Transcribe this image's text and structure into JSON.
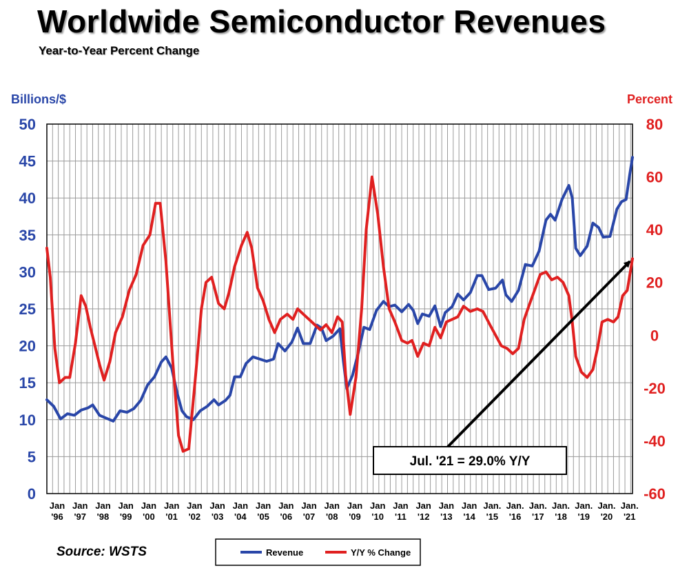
{
  "title": "Worldwide Semiconductor Revenues",
  "subtitle": "Year-to-Year Percent Change",
  "source": "Source: WSTS",
  "colors": {
    "revenue": "#2946a8",
    "yoy": "#e02020",
    "left_axis": "#2946a8",
    "right_axis": "#e02020"
  },
  "chart_data": {
    "type": "line",
    "y_left": {
      "label": "Billions/$",
      "range": [
        0,
        50
      ],
      "ticks": [
        "0",
        "5",
        "10",
        "15",
        "20",
        "25",
        "30",
        "35",
        "40",
        "45",
        "50"
      ]
    },
    "y_right": {
      "label": "Percent",
      "range": [
        -60,
        80
      ],
      "ticks": [
        "-60",
        "-40",
        "-20",
        "0",
        "20",
        "40",
        "60",
        "80"
      ]
    },
    "x_range": [
      1996.0,
      2021.58
    ],
    "x_ticks": [
      {
        "x": 1996,
        "l1": "Jan",
        "l2": "'96"
      },
      {
        "x": 1997,
        "l1": "Jan",
        "l2": "'97"
      },
      {
        "x": 1998,
        "l1": "Jan",
        "l2": "'98"
      },
      {
        "x": 1999,
        "l1": "Jan",
        "l2": "'99"
      },
      {
        "x": 2000,
        "l1": "Jan",
        "l2": "'00"
      },
      {
        "x": 2001,
        "l1": "Jan",
        "l2": "'01"
      },
      {
        "x": 2002,
        "l1": "Jan",
        "l2": "'02"
      },
      {
        "x": 2003,
        "l1": "Jan",
        "l2": "'03"
      },
      {
        "x": 2004,
        "l1": "Jan",
        "l2": "'04"
      },
      {
        "x": 2005,
        "l1": "Jan",
        "l2": "'05"
      },
      {
        "x": 2006,
        "l1": "Jan",
        "l2": "'06"
      },
      {
        "x": 2007,
        "l1": "Jan",
        "l2": "'07"
      },
      {
        "x": 2008,
        "l1": "Jan",
        "l2": "'08"
      },
      {
        "x": 2009,
        "l1": "Jan",
        "l2": "'09"
      },
      {
        "x": 2010,
        "l1": "Jan",
        "l2": "'10"
      },
      {
        "x": 2011,
        "l1": "Jan",
        "l2": "'11"
      },
      {
        "x": 2012,
        "l1": "Jan",
        "l2": "'12"
      },
      {
        "x": 2013,
        "l1": "Jan",
        "l2": "'13"
      },
      {
        "x": 2014,
        "l1": "Jan",
        "l2": "'14"
      },
      {
        "x": 2015,
        "l1": "Jan.",
        "l2": "'15"
      },
      {
        "x": 2016,
        "l1": "Jan.",
        "l2": "'16"
      },
      {
        "x": 2017,
        "l1": "Jan.",
        "l2": "'17"
      },
      {
        "x": 2018,
        "l1": "Jan.",
        "l2": "'18"
      },
      {
        "x": 2019,
        "l1": "Jan.",
        "l2": "'19"
      },
      {
        "x": 2020,
        "l1": "Jan.",
        "l2": "'20"
      },
      {
        "x": 2021,
        "l1": "Jan.",
        "l2": "'21"
      }
    ],
    "series": [
      {
        "name": "Revenue",
        "axis": "left",
        "points": [
          [
            1996.0,
            12.7
          ],
          [
            1996.3,
            11.8
          ],
          [
            1996.6,
            10.1
          ],
          [
            1996.9,
            10.8
          ],
          [
            1997.2,
            10.6
          ],
          [
            1997.5,
            11.3
          ],
          [
            1997.8,
            11.6
          ],
          [
            1998.0,
            12.0
          ],
          [
            1998.3,
            10.6
          ],
          [
            1998.6,
            10.2
          ],
          [
            1998.9,
            9.8
          ],
          [
            1999.2,
            11.2
          ],
          [
            1999.5,
            11.0
          ],
          [
            1999.8,
            11.5
          ],
          [
            2000.1,
            12.6
          ],
          [
            2000.4,
            14.7
          ],
          [
            2000.7,
            15.8
          ],
          [
            2001.0,
            17.8
          ],
          [
            2001.2,
            18.5
          ],
          [
            2001.45,
            17.0
          ],
          [
            2001.7,
            13.5
          ],
          [
            2001.9,
            11.2
          ],
          [
            2002.1,
            10.4
          ],
          [
            2002.4,
            10.0
          ],
          [
            2002.7,
            11.2
          ],
          [
            2003.0,
            11.8
          ],
          [
            2003.3,
            12.7
          ],
          [
            2003.5,
            12.0
          ],
          [
            2003.8,
            12.6
          ],
          [
            2004.0,
            13.3
          ],
          [
            2004.2,
            15.8
          ],
          [
            2004.45,
            15.8
          ],
          [
            2004.7,
            17.6
          ],
          [
            2005.0,
            18.5
          ],
          [
            2005.3,
            18.2
          ],
          [
            2005.6,
            17.9
          ],
          [
            2005.9,
            18.2
          ],
          [
            2006.1,
            20.3
          ],
          [
            2006.4,
            19.3
          ],
          [
            2006.7,
            20.5
          ],
          [
            2006.95,
            22.4
          ],
          [
            2007.2,
            20.3
          ],
          [
            2007.5,
            20.3
          ],
          [
            2007.8,
            22.8
          ],
          [
            2008.0,
            22.4
          ],
          [
            2008.2,
            20.7
          ],
          [
            2008.5,
            21.3
          ],
          [
            2008.8,
            22.3
          ],
          [
            2008.95,
            18.0
          ],
          [
            2009.1,
            14.2
          ],
          [
            2009.35,
            16.0
          ],
          [
            2009.6,
            19.0
          ],
          [
            2009.85,
            22.5
          ],
          [
            2010.1,
            22.2
          ],
          [
            2010.4,
            24.8
          ],
          [
            2010.7,
            26.0
          ],
          [
            2010.95,
            25.3
          ],
          [
            2011.2,
            25.5
          ],
          [
            2011.5,
            24.6
          ],
          [
            2011.8,
            25.6
          ],
          [
            2012.0,
            24.8
          ],
          [
            2012.2,
            23.0
          ],
          [
            2012.4,
            24.3
          ],
          [
            2012.7,
            24.0
          ],
          [
            2012.95,
            25.4
          ],
          [
            2013.2,
            22.6
          ],
          [
            2013.4,
            24.5
          ],
          [
            2013.7,
            25.3
          ],
          [
            2013.95,
            27.0
          ],
          [
            2014.2,
            26.2
          ],
          [
            2014.5,
            27.2
          ],
          [
            2014.8,
            29.5
          ],
          [
            2015.0,
            29.5
          ],
          [
            2015.3,
            27.6
          ],
          [
            2015.6,
            27.8
          ],
          [
            2015.9,
            28.9
          ],
          [
            2016.05,
            26.9
          ],
          [
            2016.3,
            26.0
          ],
          [
            2016.6,
            27.5
          ],
          [
            2016.9,
            31.0
          ],
          [
            2017.2,
            30.8
          ],
          [
            2017.5,
            32.8
          ],
          [
            2017.8,
            37.0
          ],
          [
            2018.0,
            37.8
          ],
          [
            2018.2,
            37.0
          ],
          [
            2018.5,
            39.8
          ],
          [
            2018.8,
            41.7
          ],
          [
            2018.95,
            40.0
          ],
          [
            2019.1,
            33.2
          ],
          [
            2019.3,
            32.2
          ],
          [
            2019.6,
            33.5
          ],
          [
            2019.85,
            36.6
          ],
          [
            2020.1,
            36.0
          ],
          [
            2020.3,
            34.7
          ],
          [
            2020.6,
            34.8
          ],
          [
            2020.9,
            38.5
          ],
          [
            2021.1,
            39.5
          ],
          [
            2021.3,
            39.8
          ],
          [
            2021.45,
            43.0
          ],
          [
            2021.58,
            45.5
          ]
        ]
      },
      {
        "name": "Y/Y % Change",
        "axis": "right",
        "points": [
          [
            1996.0,
            33.0
          ],
          [
            1996.15,
            22.0
          ],
          [
            1996.35,
            -5.0
          ],
          [
            1996.55,
            -18.0
          ],
          [
            1996.8,
            -16.0
          ],
          [
            1997.0,
            -16.0
          ],
          [
            1997.25,
            -3.0
          ],
          [
            1997.5,
            15.0
          ],
          [
            1997.7,
            11.0
          ],
          [
            1997.9,
            3.0
          ],
          [
            1998.1,
            -4.0
          ],
          [
            1998.3,
            -11.0
          ],
          [
            1998.5,
            -17.0
          ],
          [
            1998.75,
            -10.0
          ],
          [
            1999.0,
            1.0
          ],
          [
            1999.3,
            7.0
          ],
          [
            1999.6,
            17.0
          ],
          [
            1999.9,
            23.0
          ],
          [
            2000.2,
            34.0
          ],
          [
            2000.5,
            38.0
          ],
          [
            2000.75,
            50.0
          ],
          [
            2000.95,
            50.0
          ],
          [
            2001.2,
            28.0
          ],
          [
            2001.5,
            -10.0
          ],
          [
            2001.75,
            -38.0
          ],
          [
            2001.95,
            -44.0
          ],
          [
            2002.2,
            -43.0
          ],
          [
            2002.5,
            -15.0
          ],
          [
            2002.75,
            10.0
          ],
          [
            2002.95,
            20.0
          ],
          [
            2003.2,
            22.0
          ],
          [
            2003.5,
            12.0
          ],
          [
            2003.75,
            10.0
          ],
          [
            2003.95,
            16.0
          ],
          [
            2004.2,
            26.0
          ],
          [
            2004.5,
            34.0
          ],
          [
            2004.75,
            39.0
          ],
          [
            2004.95,
            33.0
          ],
          [
            2005.2,
            18.0
          ],
          [
            2005.45,
            13.0
          ],
          [
            2005.7,
            6.0
          ],
          [
            2005.95,
            1.0
          ],
          [
            2006.2,
            6.0
          ],
          [
            2006.5,
            8.0
          ],
          [
            2006.75,
            6.0
          ],
          [
            2006.95,
            10.0
          ],
          [
            2007.2,
            8.0
          ],
          [
            2007.45,
            6.0
          ],
          [
            2007.7,
            4.0
          ],
          [
            2007.95,
            2.0
          ],
          [
            2008.2,
            4.0
          ],
          [
            2008.45,
            1.0
          ],
          [
            2008.7,
            7.0
          ],
          [
            2008.9,
            5.0
          ],
          [
            2009.05,
            -15.0
          ],
          [
            2009.25,
            -30.0
          ],
          [
            2009.5,
            -16.0
          ],
          [
            2009.75,
            10.0
          ],
          [
            2009.95,
            40.0
          ],
          [
            2010.2,
            60.0
          ],
          [
            2010.45,
            46.0
          ],
          [
            2010.7,
            26.0
          ],
          [
            2010.95,
            10.0
          ],
          [
            2011.2,
            5.0
          ],
          [
            2011.5,
            -2.0
          ],
          [
            2011.75,
            -3.0
          ],
          [
            2011.95,
            -2.0
          ],
          [
            2012.2,
            -8.0
          ],
          [
            2012.45,
            -3.0
          ],
          [
            2012.7,
            -4.0
          ],
          [
            2012.95,
            3.0
          ],
          [
            2013.2,
            -1.0
          ],
          [
            2013.45,
            5.0
          ],
          [
            2013.7,
            6.0
          ],
          [
            2013.95,
            7.0
          ],
          [
            2014.2,
            11.0
          ],
          [
            2014.5,
            9.0
          ],
          [
            2014.8,
            10.0
          ],
          [
            2015.05,
            9.0
          ],
          [
            2015.35,
            4.0
          ],
          [
            2015.6,
            0.0
          ],
          [
            2015.85,
            -4.0
          ],
          [
            2016.1,
            -5.0
          ],
          [
            2016.35,
            -7.0
          ],
          [
            2016.6,
            -5.0
          ],
          [
            2016.85,
            6.0
          ],
          [
            2017.05,
            11.0
          ],
          [
            2017.3,
            17.0
          ],
          [
            2017.55,
            23.0
          ],
          [
            2017.8,
            24.0
          ],
          [
            2018.05,
            21.0
          ],
          [
            2018.3,
            22.0
          ],
          [
            2018.55,
            20.0
          ],
          [
            2018.8,
            15.0
          ],
          [
            2018.95,
            5.0
          ],
          [
            2019.1,
            -8.0
          ],
          [
            2019.35,
            -14.0
          ],
          [
            2019.6,
            -16.0
          ],
          [
            2019.85,
            -13.0
          ],
          [
            2020.05,
            -5.0
          ],
          [
            2020.25,
            5.0
          ],
          [
            2020.5,
            6.0
          ],
          [
            2020.75,
            5.0
          ],
          [
            2020.95,
            7.0
          ],
          [
            2021.15,
            15.0
          ],
          [
            2021.35,
            17.0
          ],
          [
            2021.58,
            29.0
          ]
        ]
      }
    ],
    "annotation": {
      "text": "Jul. '21 = 29.0% Y/Y",
      "points_to": [
        2021.58,
        29.0
      ]
    },
    "legend": {
      "placement": "bottom-center",
      "entries": [
        "Revenue",
        "Y/Y % Change"
      ]
    },
    "grid": true
  }
}
